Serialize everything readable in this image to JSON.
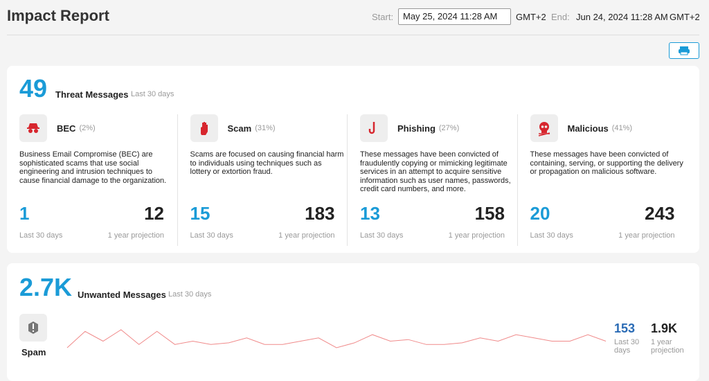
{
  "header": {
    "title": "Impact Report",
    "start_label": "Start:",
    "start_value": "May 25, 2024 11:28 AM",
    "start_tz": "GMT+2",
    "end_label": "End:",
    "end_value": "Jun 24, 2024 11:28 AM",
    "end_tz": "GMT+2"
  },
  "threats": {
    "count": 49,
    "title": "Threat Messages",
    "period": "Last 30 days",
    "categories": [
      {
        "name": "BEC",
        "share": "(2%)",
        "description": "Business Email Compromise (BEC) are sophisticated scams that use social engineering and intrusion techniques to cause financial damage to the organization.",
        "recent": 1,
        "recent_label": "Last 30 days",
        "projection": 12,
        "projection_label": "1 year projection"
      },
      {
        "name": "Scam",
        "share": "(31%)",
        "description": "Scams are focused on causing financial harm to individuals using techniques such as lottery or extortion fraud.",
        "recent": 15,
        "recent_label": "Last 30 days",
        "projection": 183,
        "projection_label": "1 year projection"
      },
      {
        "name": "Phishing",
        "share": "(27%)",
        "description": "These messages have been convicted of fraudulently copying or mimicking legitimate services in an attempt to acquire sensitive information such as user names, passwords, credit card numbers, and more.",
        "recent": 13,
        "recent_label": "Last 30 days",
        "projection": 158,
        "projection_label": "1 year projection"
      },
      {
        "name": "Malicious",
        "share": "(41%)",
        "description": "These messages have been convicted of containing, serving, or supporting the delivery or propagation on malicious software.",
        "recent": 20,
        "recent_label": "Last 30 days",
        "projection": 243,
        "projection_label": "1 year projection"
      }
    ]
  },
  "unwanted": {
    "count": "2.7K",
    "title": "Unwanted Messages",
    "period": "Last 30 days"
  },
  "spam": {
    "name": "Spam",
    "trend": [
      2,
      12,
      6,
      13,
      4,
      12,
      4,
      6,
      4,
      5,
      8,
      4,
      4,
      6,
      8,
      2,
      5,
      10,
      6,
      7,
      4,
      4,
      5,
      8,
      6,
      10,
      8,
      6,
      6,
      10,
      6
    ],
    "recent": 153,
    "recent_label": "Last 30 days",
    "projection": "1.9K",
    "projection_label": "1 year projection"
  }
}
